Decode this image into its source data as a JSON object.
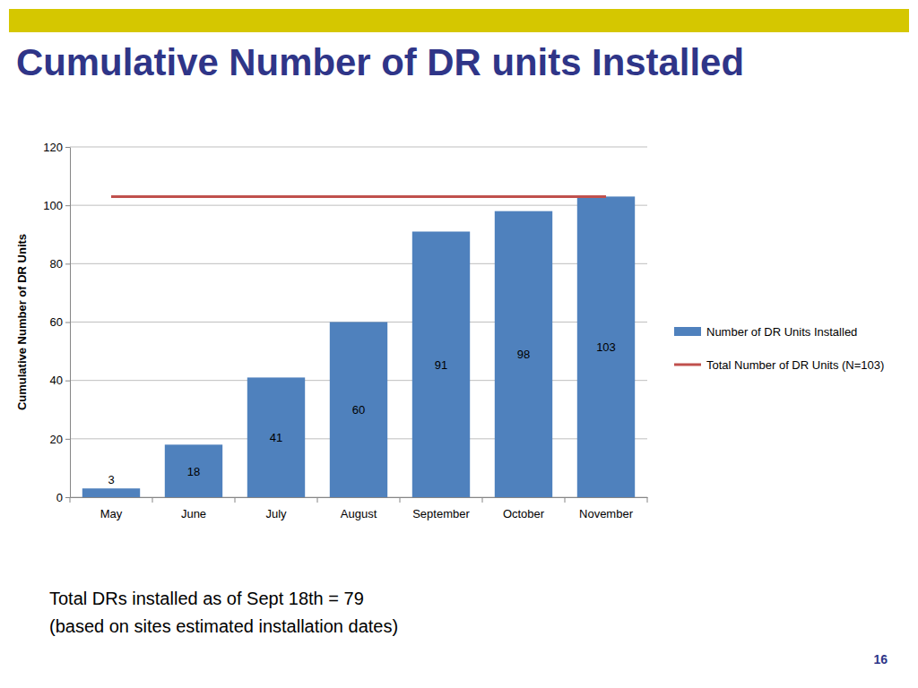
{
  "chart_data": {
    "type": "bar",
    "title": "Cumulative Number of DR units Installed",
    "y_label": "Cumulative Number of DR Units",
    "categories": [
      "May",
      "June",
      "July",
      "August",
      "September",
      "October",
      "November"
    ],
    "series": [
      {
        "name": "Number of DR Units Installed",
        "type": "bar",
        "color": "#4f81bd",
        "data_labels": true,
        "values": [
          3,
          18,
          41,
          60,
          91,
          98,
          103
        ]
      },
      {
        "name": "Total Number of DR Units (N=103)",
        "type": "line",
        "color": "#c0504d",
        "values": [
          103,
          103,
          103,
          103,
          103,
          103,
          103
        ]
      }
    ],
    "ylim": [
      0,
      120
    ],
    "yticks": [
      0,
      20,
      40,
      60,
      80,
      100,
      120
    ],
    "grid": true,
    "legend": "right",
    "annotations": [
      "Total DRs installed as of Sept 18th = 79",
      "(based on sites estimated installation dates)"
    ],
    "page_number": "16"
  }
}
